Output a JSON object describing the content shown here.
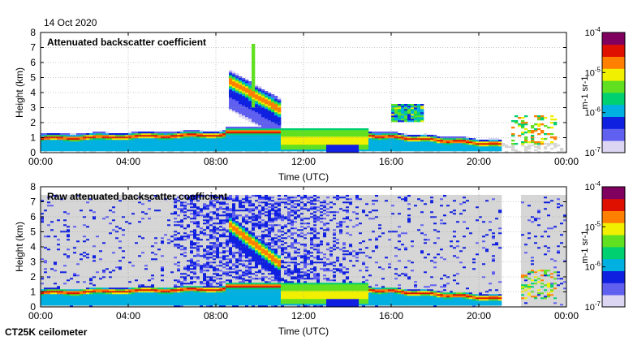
{
  "date": "14 Oct 2020",
  "instrument": "CT25K ceilometer",
  "colors": {
    "colormap": [
      "#ddd6f2",
      "#6060f0",
      "#1020e0",
      "#00b0e0",
      "#00d070",
      "#60e020",
      "#f0f000",
      "#ff8000",
      "#e01000",
      "#800060"
    ],
    "no_signal": "#d6d6d6"
  },
  "chart_data": [
    {
      "type": "heatmap",
      "title": "Attenuated backscatter coefficient",
      "xlabel": "Time (UTC)",
      "ylabel": "Height (km)",
      "xlim": [
        0,
        24
      ],
      "ylim": [
        0,
        8
      ],
      "x_ticks": [
        0,
        4,
        8,
        12,
        16,
        20,
        24
      ],
      "x_tick_labels": [
        "00:00",
        "04:00",
        "08:00",
        "12:00",
        "16:00",
        "20:00",
        "00:00"
      ],
      "y_ticks": [
        0,
        1,
        2,
        3,
        4,
        5,
        6,
        7,
        8
      ],
      "y_tick_labels": [
        "0",
        "1",
        "2",
        "3",
        "4",
        "5",
        "6",
        "7",
        "8"
      ],
      "colorbar": {
        "scale": "log",
        "range": [
          1e-07,
          0.0001
        ],
        "exponents": [
          -7,
          -6,
          -5,
          -4
        ],
        "tick_labels": [
          "10-7",
          "10-6",
          "10-5",
          "10-4"
        ],
        "units": "m-1 sr-1"
      },
      "features": [
        {
          "kind": "boundary_layer",
          "time_range": [
            0,
            8.5
          ],
          "height_km": [
            0.8,
            1.3
          ],
          "peak": "red"
        },
        {
          "kind": "elevated_layer",
          "time_range": [
            8.6,
            11
          ],
          "height_km_start": 4.8,
          "height_km_end": 2.8,
          "peak": "orange"
        },
        {
          "kind": "cloud",
          "time_range": [
            11,
            15
          ],
          "height_km": [
            0.2,
            1.6
          ],
          "peak": "green-yellow"
        },
        {
          "kind": "boundary_layer",
          "time_range": [
            15,
            21
          ],
          "height_km": [
            0.3,
            1.2
          ],
          "peak": "red"
        },
        {
          "kind": "patches",
          "time_range": [
            21.5,
            23.5
          ],
          "height_km": [
            0.5,
            2.5
          ],
          "peak": "orange"
        }
      ]
    },
    {
      "type": "heatmap",
      "title": "Raw attenuated backscatter coefficient",
      "xlabel": "Time (UTC)",
      "ylabel": "Height (km)",
      "xlim": [
        0,
        24
      ],
      "ylim": [
        0,
        8
      ],
      "x_ticks": [
        0,
        4,
        8,
        12,
        16,
        20,
        24
      ],
      "x_tick_labels": [
        "00:00",
        "04:00",
        "08:00",
        "12:00",
        "16:00",
        "20:00",
        "00:00"
      ],
      "y_ticks": [
        0,
        1,
        2,
        3,
        4,
        5,
        6,
        7,
        8
      ],
      "y_tick_labels": [
        "0",
        "1",
        "2",
        "3",
        "4",
        "5",
        "6",
        "7",
        "8"
      ],
      "colorbar": {
        "scale": "log",
        "range": [
          1e-07,
          0.0001
        ],
        "exponents": [
          -7,
          -6,
          -5,
          -4
        ],
        "tick_labels": [
          "10-7",
          "10-6",
          "10-5",
          "10-4"
        ],
        "units": "m-1 sr-1"
      },
      "features": [
        {
          "kind": "noise_background",
          "time_range": [
            0,
            24
          ],
          "height_km": [
            0,
            7.5
          ]
        },
        {
          "kind": "strong_noise",
          "time_range": [
            6,
            15
          ],
          "height_km": [
            0,
            7.5
          ]
        },
        {
          "kind": "data_gap",
          "time_range": [
            21,
            22
          ],
          "height_km": [
            0,
            7.5
          ]
        },
        {
          "kind": "boundary_layer",
          "time_range": [
            0,
            8.5
          ],
          "height_km": [
            0.8,
            1.3
          ],
          "peak": "red"
        },
        {
          "kind": "elevated_layer",
          "time_range": [
            8.6,
            11
          ],
          "height_km_start": 5.5,
          "height_km_end": 2.8,
          "peak": "orange"
        },
        {
          "kind": "cloud",
          "time_range": [
            11,
            15
          ],
          "height_km": [
            0.2,
            1.6
          ],
          "peak": "green-yellow"
        }
      ]
    }
  ]
}
